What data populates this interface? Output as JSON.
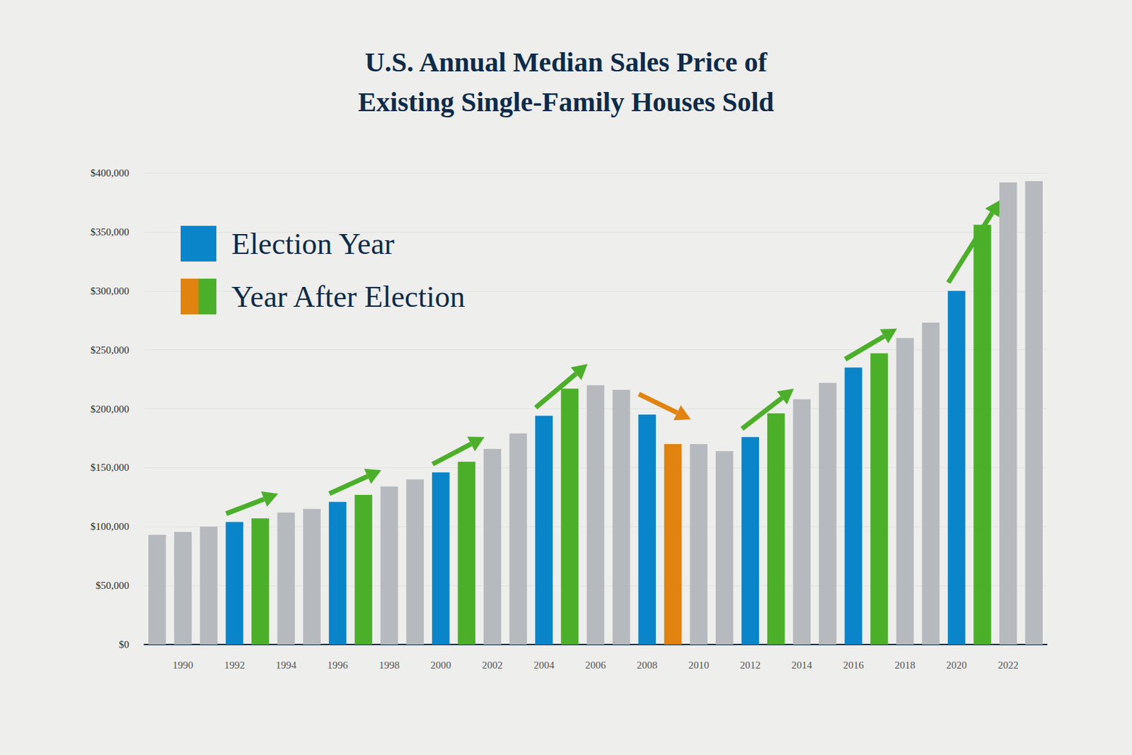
{
  "chart_data": {
    "type": "bar",
    "title": "U.S. Annual Median Sales Price of\nExisting Single-Family Houses Sold",
    "categories": [
      null,
      "1990",
      null,
      "1992",
      null,
      "1994",
      null,
      "1996",
      null,
      "1998",
      null,
      "2000",
      null,
      "2002",
      null,
      "2004",
      null,
      "2006",
      null,
      "2008",
      null,
      "2010",
      null,
      "2012",
      null,
      "2014",
      null,
      "2016",
      null,
      "2018",
      null,
      "2020",
      null,
      "2022",
      null
    ],
    "values": [
      93000,
      95500,
      100000,
      104000,
      107000,
      112000,
      115000,
      121000,
      127000,
      134000,
      140000,
      146000,
      155000,
      166000,
      179000,
      194000,
      217000,
      220000,
      216000,
      195000,
      170000,
      170000,
      164000,
      176000,
      196000,
      208000,
      222000,
      235000,
      247000,
      260000,
      273000,
      300000,
      356000,
      392000,
      393000
    ],
    "colors": [
      "#b6b9bd",
      "#b6b9bd",
      "#b6b9bd",
      "#0a85c9",
      "#4caf2a",
      "#b6b9bd",
      "#b6b9bd",
      "#0a85c9",
      "#4caf2a",
      "#b6b9bd",
      "#b6b9bd",
      "#0a85c9",
      "#4caf2a",
      "#b6b9bd",
      "#b6b9bd",
      "#0a85c9",
      "#4caf2a",
      "#b6b9bd",
      "#b6b9bd",
      "#0a85c9",
      "#e0830f",
      "#b6b9bd",
      "#b6b9bd",
      "#0a85c9",
      "#4caf2a",
      "#b6b9bd",
      "#b6b9bd",
      "#0a85c9",
      "#4caf2a",
      "#b6b9bd",
      "#b6b9bd",
      "#0a85c9",
      "#4caf2a",
      "#b6b9bd",
      "#b6b9bd"
    ],
    "legend_entries": [
      {
        "name": "Election Year",
        "colors": [
          "#0a85c9"
        ]
      },
      {
        "name": "Year After Election",
        "colors": [
          "#e0830f",
          "#4caf2a"
        ]
      }
    ],
    "legend": "upper left",
    "ylim": [
      0,
      400000
    ],
    "yticks": [
      {
        "value": 0,
        "label": "$0"
      },
      {
        "value": 50000,
        "label": "$50,000"
      },
      {
        "value": 100000,
        "label": "$100,000"
      },
      {
        "value": 150000,
        "label": "$150,000"
      },
      {
        "value": 200000,
        "label": "$200,000"
      },
      {
        "value": 250000,
        "label": "$250,000"
      },
      {
        "value": 300000,
        "label": "$300,000"
      },
      {
        "value": 350000,
        "label": "$350,000"
      },
      {
        "value": 400000,
        "label": "$400,000"
      }
    ],
    "grid": true
  }
}
